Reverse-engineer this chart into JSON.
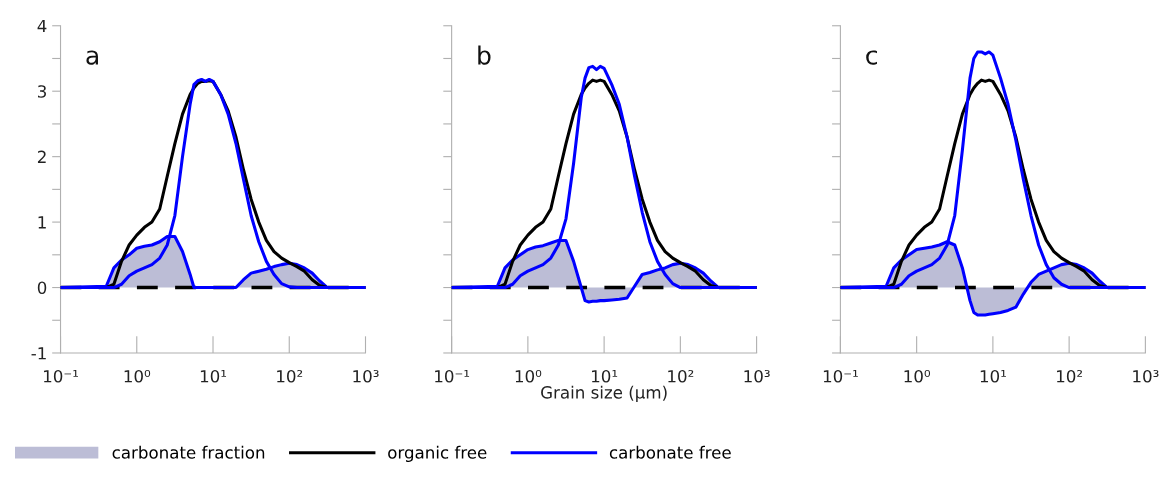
{
  "chart_data": [
    {
      "type": "line",
      "log": "x",
      "xlim": [
        0.1,
        1000
      ],
      "ylim": [
        -1,
        4
      ],
      "grid": false,
      "legend": "bottom",
      "xticks": [
        {
          "value": 0.1,
          "label": "10⁻¹"
        },
        {
          "value": 1,
          "label": "10⁰"
        },
        {
          "value": 10,
          "label": "10¹"
        },
        {
          "value": 100,
          "label": "10²"
        },
        {
          "value": 1000,
          "label": "10³"
        }
      ],
      "yticks": [
        -1,
        {
          "value": -0.5,
          "label": null
        },
        0,
        {
          "value": 0.5,
          "label": null
        },
        1,
        {
          "value": 1.5,
          "label": null
        },
        2,
        {
          "value": 2.5,
          "label": null
        },
        3,
        {
          "value": 3.5,
          "label": null
        },
        4
      ],
      "annotations": [
        "a"
      ],
      "ref_lines": [
        {
          "axis": "y",
          "value": 0,
          "label": null,
          "color": "#000000",
          "line_style": "dashed"
        }
      ],
      "x": [
        0.1,
        0.398,
        0.501,
        0.631,
        0.794,
        1,
        1.26,
        1.58,
        2.0,
        2.51,
        3.16,
        3.98,
        5.01,
        5.62,
        6.31,
        7.08,
        7.94,
        8.91,
        10,
        12.6,
        15.8,
        20,
        25.1,
        31.6,
        39.8,
        50.1,
        63.1,
        79.4,
        100,
        126,
        158,
        200,
        251,
        316,
        1000
      ],
      "series": [
        {
          "name": "carbonate fraction",
          "type": "area",
          "color": "#bcbdd6",
          "values": [
            0,
            0.02,
            0.3,
            0.42,
            0.5,
            0.6,
            0.63,
            0.65,
            0.7,
            0.78,
            0.78,
            0.55,
            0.2,
            0,
            0,
            0,
            0,
            0,
            0,
            0,
            0,
            0,
            0.12,
            0.22,
            0.25,
            0.28,
            0.32,
            0.35,
            0.37,
            0.35,
            0.3,
            0.22,
            0.1,
            0,
            0
          ]
        },
        {
          "name": "organic free",
          "type": "line",
          "color": "#000000",
          "values": [
            0,
            0,
            0.05,
            0.4,
            0.65,
            0.8,
            0.92,
            1.0,
            1.2,
            1.7,
            2.2,
            2.65,
            2.95,
            3.05,
            3.12,
            3.15,
            3.15,
            3.16,
            3.15,
            2.95,
            2.7,
            2.3,
            1.8,
            1.35,
            1.0,
            0.72,
            0.55,
            0.45,
            0.38,
            0.32,
            0.25,
            0.12,
            0.03,
            0,
            0
          ]
        },
        {
          "name": "carbonate free",
          "type": "line",
          "color": "#0000ff",
          "values": [
            0,
            0,
            0,
            0.05,
            0.18,
            0.25,
            0.3,
            0.35,
            0.45,
            0.65,
            1.1,
            2.0,
            2.8,
            3.1,
            3.16,
            3.18,
            3.15,
            3.18,
            3.15,
            2.95,
            2.65,
            2.2,
            1.65,
            1.1,
            0.7,
            0.4,
            0.2,
            0.06,
            0.01,
            0,
            0,
            0,
            0,
            0,
            0
          ]
        }
      ]
    },
    {
      "type": "line",
      "log": "x",
      "xlim": [
        0.1,
        1000
      ],
      "ylim": [
        -1,
        4
      ],
      "grid": false,
      "tick_labels": "x",
      "xlabel": "Grain size (µm)",
      "xticks": [
        {
          "value": 0.1,
          "label": "10⁻¹"
        },
        {
          "value": 1,
          "label": "10⁰"
        },
        {
          "value": 10,
          "label": "10¹"
        },
        {
          "value": 100,
          "label": "10²"
        },
        {
          "value": 1000,
          "label": "10³"
        }
      ],
      "yticks": [
        -1,
        {
          "value": -0.5,
          "label": null
        },
        0,
        {
          "value": 0.5,
          "label": null
        },
        1,
        {
          "value": 1.5,
          "label": null
        },
        2,
        {
          "value": 2.5,
          "label": null
        },
        3,
        {
          "value": 3.5,
          "label": null
        },
        4
      ],
      "annotations": [
        "b"
      ],
      "ref_lines": [
        {
          "axis": "y",
          "value": 0,
          "label": null,
          "color": "#000000",
          "line_style": "dashed"
        }
      ],
      "x": [
        0.1,
        0.398,
        0.501,
        0.631,
        0.794,
        1,
        1.26,
        1.58,
        2.0,
        2.51,
        3.16,
        3.98,
        5.01,
        5.62,
        6.31,
        7.08,
        7.94,
        8.91,
        10,
        12.6,
        15.8,
        20,
        25.1,
        31.6,
        39.8,
        50.1,
        63.1,
        79.4,
        100,
        126,
        158,
        200,
        251,
        316,
        1000
      ],
      "series": [
        {
          "type": "area",
          "color": "#bcbdd6",
          "values": [
            0,
            0.02,
            0.3,
            0.42,
            0.5,
            0.58,
            0.62,
            0.64,
            0.68,
            0.72,
            0.72,
            0.4,
            0,
            -0.2,
            -0.22,
            -0.21,
            -0.21,
            -0.2,
            -0.2,
            -0.19,
            -0.18,
            -0.16,
            0.02,
            0.2,
            0.23,
            0.27,
            0.3,
            0.35,
            0.37,
            0.35,
            0.3,
            0.22,
            0.1,
            0,
            0
          ]
        },
        {
          "type": "line",
          "color": "#000000",
          "values": [
            0,
            0,
            0.05,
            0.4,
            0.65,
            0.8,
            0.92,
            1.0,
            1.2,
            1.7,
            2.2,
            2.65,
            2.95,
            3.05,
            3.12,
            3.17,
            3.15,
            3.17,
            3.15,
            2.95,
            2.7,
            2.3,
            1.8,
            1.35,
            1.0,
            0.72,
            0.55,
            0.45,
            0.38,
            0.32,
            0.25,
            0.12,
            0.03,
            0,
            0
          ]
        },
        {
          "type": "line",
          "color": "#0000ff",
          "values": [
            0,
            0,
            0,
            0.05,
            0.18,
            0.25,
            0.3,
            0.35,
            0.45,
            0.65,
            1.05,
            1.9,
            2.9,
            3.2,
            3.36,
            3.38,
            3.33,
            3.38,
            3.35,
            3.1,
            2.8,
            2.3,
            1.7,
            1.15,
            0.7,
            0.4,
            0.2,
            0.06,
            0,
            0,
            0,
            0,
            0,
            0,
            0
          ]
        }
      ]
    },
    {
      "type": "line",
      "log": "x",
      "xlim": [
        0.1,
        1000
      ],
      "ylim": [
        -1,
        4
      ],
      "grid": false,
      "tick_labels": "x",
      "xticks": [
        {
          "value": 0.1,
          "label": "10⁻¹"
        },
        {
          "value": 1,
          "label": "10⁰"
        },
        {
          "value": 10,
          "label": "10¹"
        },
        {
          "value": 100,
          "label": "10²"
        },
        {
          "value": 1000,
          "label": "10³"
        }
      ],
      "yticks": [
        -1,
        {
          "value": -0.5,
          "label": null
        },
        0,
        {
          "value": 0.5,
          "label": null
        },
        1,
        {
          "value": 1.5,
          "label": null
        },
        2,
        {
          "value": 2.5,
          "label": null
        },
        3,
        {
          "value": 3.5,
          "label": null
        },
        4
      ],
      "annotations": [
        "c"
      ],
      "ref_lines": [
        {
          "axis": "y",
          "value": 0,
          "label": null,
          "color": "#000000",
          "line_style": "dashed"
        }
      ],
      "x": [
        0.1,
        0.398,
        0.501,
        0.631,
        0.794,
        1,
        1.26,
        1.58,
        2.0,
        2.51,
        3.16,
        3.98,
        5.01,
        5.62,
        6.31,
        7.08,
        7.94,
        8.91,
        10,
        12.6,
        15.8,
        20,
        25.1,
        31.6,
        39.8,
        50.1,
        63.1,
        79.4,
        100,
        126,
        158,
        200,
        251,
        316,
        1000
      ],
      "series": [
        {
          "type": "area",
          "color": "#bcbdd6",
          "values": [
            0,
            0.02,
            0.3,
            0.42,
            0.5,
            0.58,
            0.6,
            0.62,
            0.65,
            0.7,
            0.65,
            0.3,
            -0.2,
            -0.38,
            -0.42,
            -0.42,
            -0.42,
            -0.41,
            -0.4,
            -0.38,
            -0.35,
            -0.3,
            -0.1,
            0.08,
            0.2,
            0.25,
            0.3,
            0.35,
            0.37,
            0.35,
            0.3,
            0.22,
            0.1,
            0,
            0
          ]
        },
        {
          "type": "line",
          "color": "#000000",
          "values": [
            0,
            0,
            0.05,
            0.4,
            0.65,
            0.8,
            0.92,
            1.0,
            1.2,
            1.7,
            2.2,
            2.65,
            2.95,
            3.05,
            3.12,
            3.17,
            3.15,
            3.17,
            3.15,
            2.95,
            2.7,
            2.3,
            1.8,
            1.35,
            1.0,
            0.72,
            0.55,
            0.45,
            0.38,
            0.32,
            0.25,
            0.12,
            0.03,
            0,
            0
          ]
        },
        {
          "type": "line",
          "color": "#0000ff",
          "values": [
            0,
            0,
            0,
            0.05,
            0.18,
            0.25,
            0.3,
            0.35,
            0.45,
            0.65,
            1.1,
            2.1,
            3.2,
            3.5,
            3.6,
            3.6,
            3.57,
            3.6,
            3.55,
            3.2,
            2.8,
            2.25,
            1.65,
            1.1,
            0.65,
            0.35,
            0.15,
            0.05,
            0,
            0,
            0,
            0,
            0,
            0,
            0
          ]
        }
      ]
    }
  ]
}
